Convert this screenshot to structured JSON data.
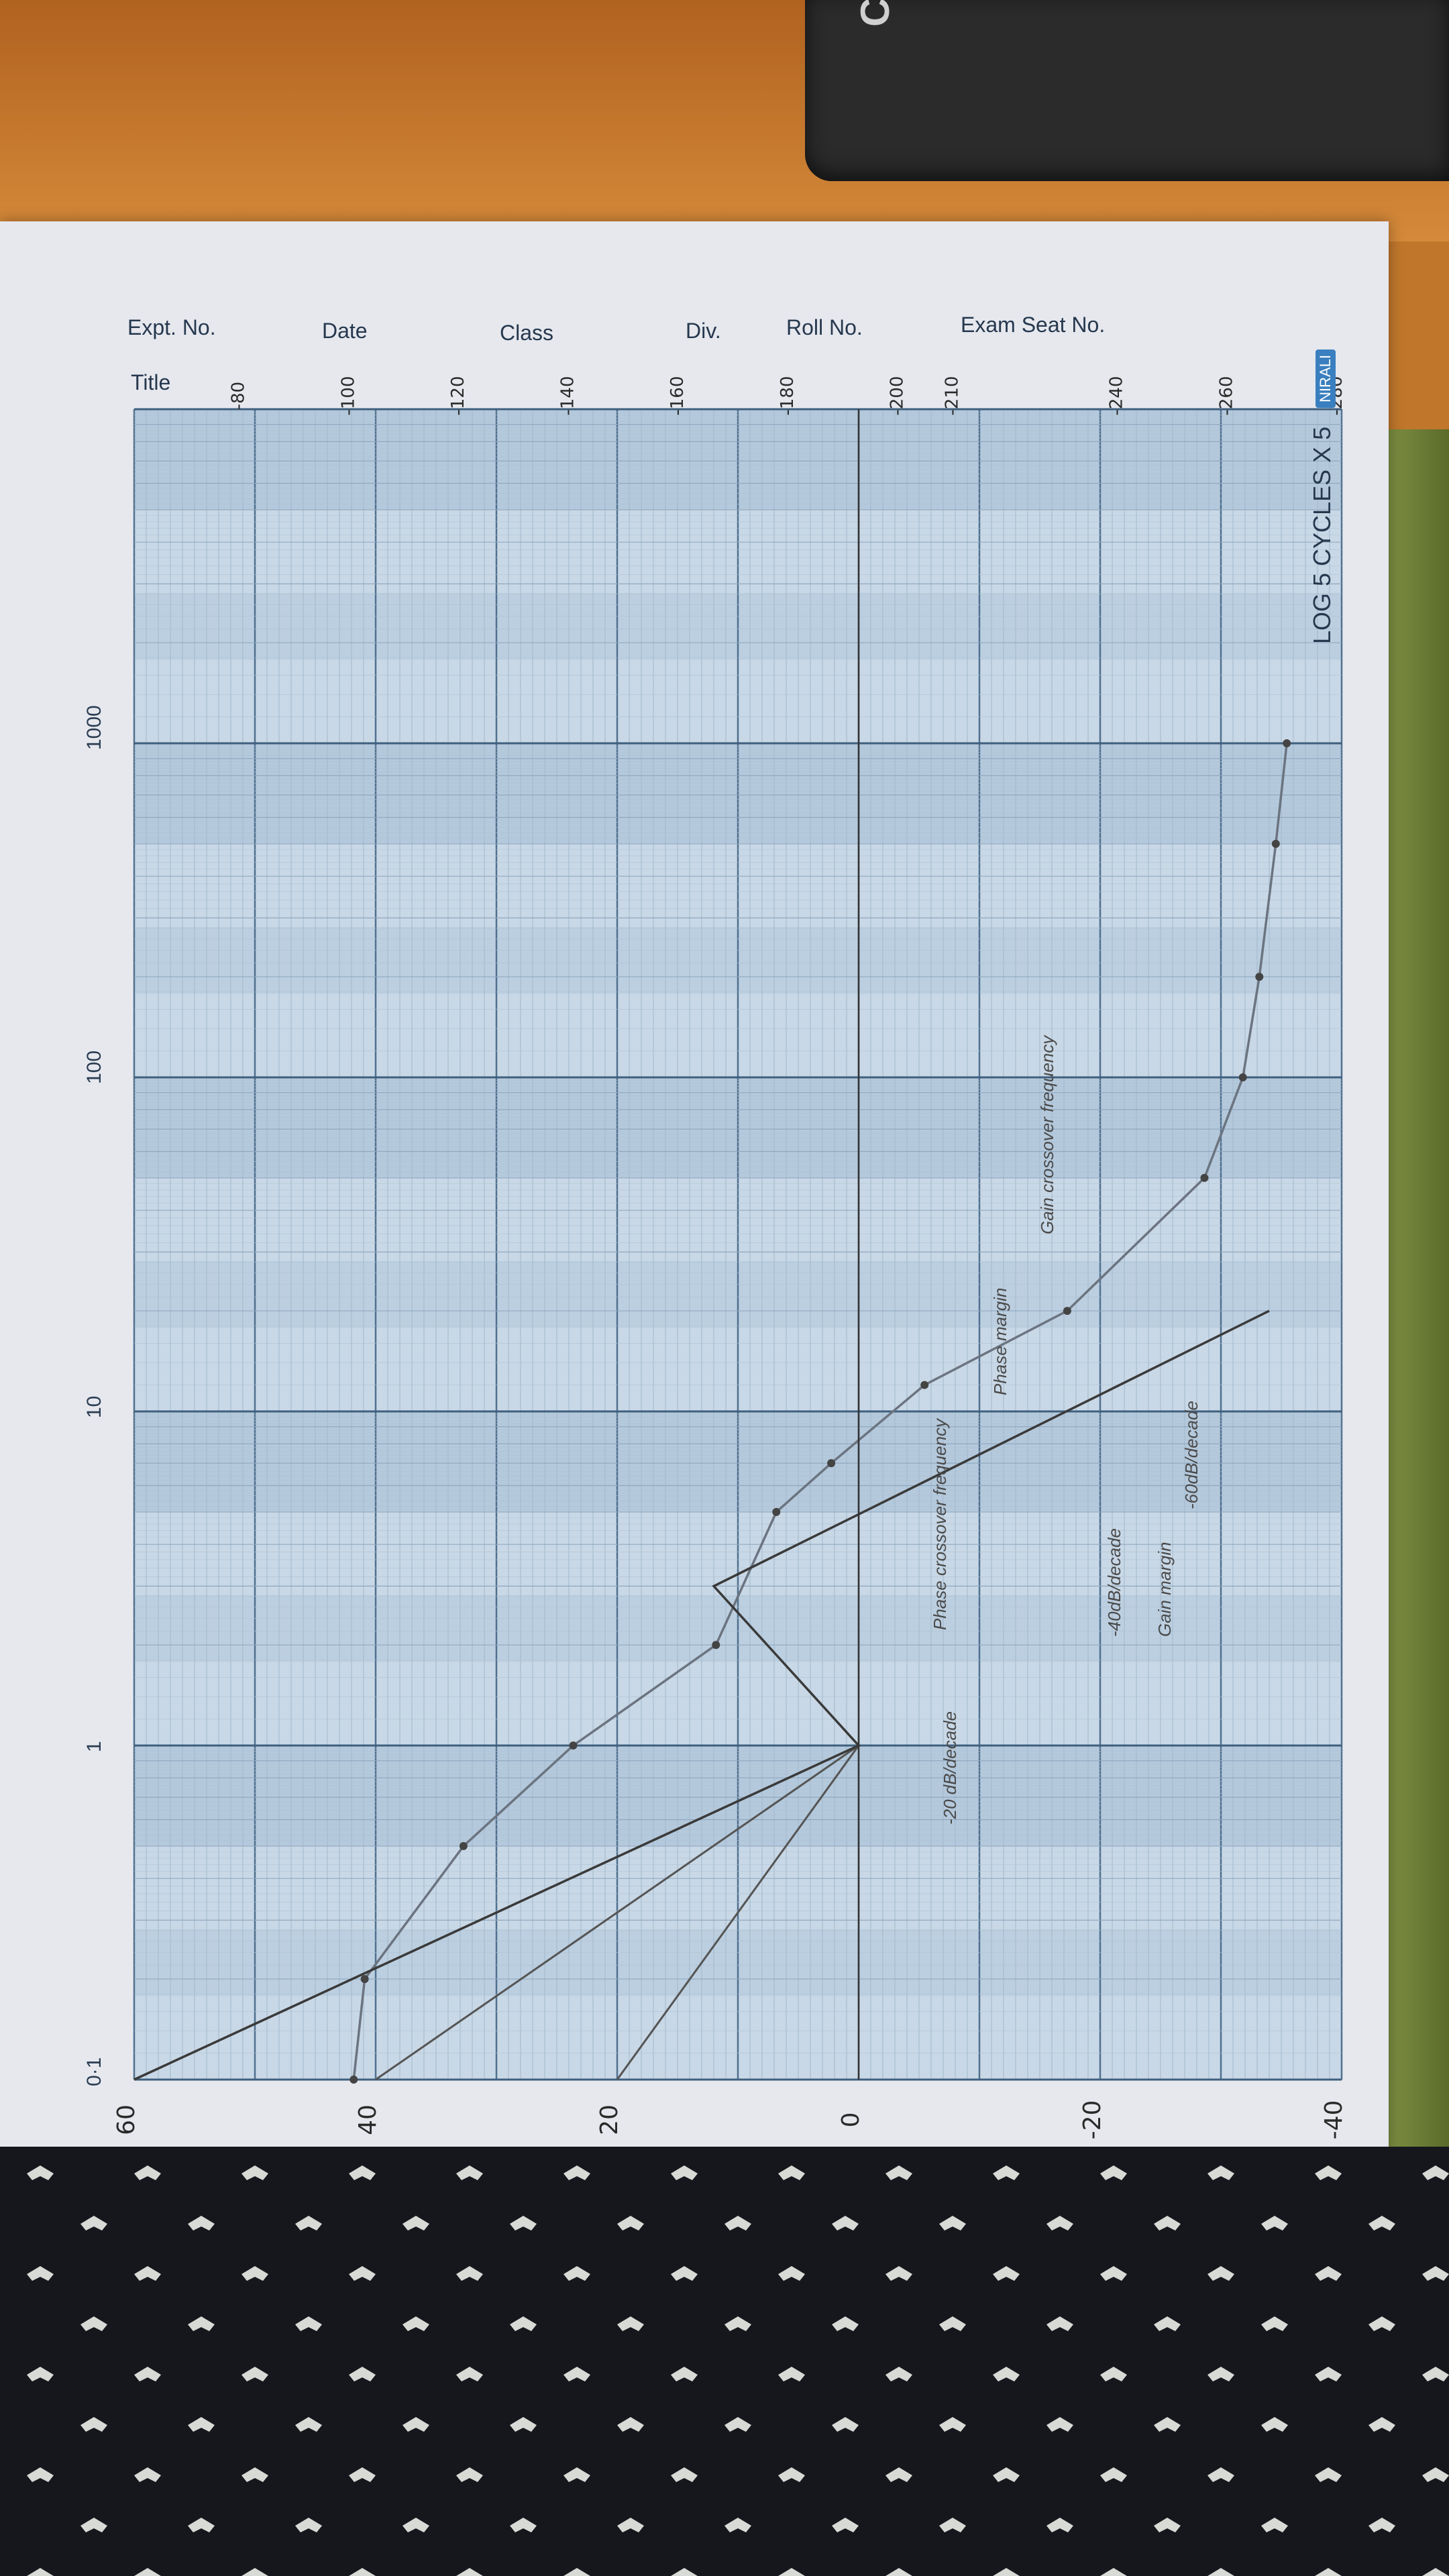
{
  "sheet": {
    "header_fields": [
      "Expt. No.",
      "Date",
      "Class",
      "Div.",
      "Roll No.",
      "Exam Seat No.",
      "Title"
    ],
    "brand_text": "LOG 5 CYCLES X 5",
    "brand_logo": "NIRALI",
    "calculator_brand": "CAS"
  },
  "chart_data": {
    "type": "line",
    "title": "",
    "xscale": "log",
    "xlim": [
      0.1,
      10000
    ],
    "decade_labels": [
      "0·1",
      "1",
      "10",
      "100",
      "1000"
    ],
    "magnitude_axis": {
      "ticks": [
        "60",
        "40",
        "20",
        "0",
        "-20",
        "-40"
      ],
      "ylim": [
        -40,
        60
      ]
    },
    "phase_axis": {
      "ticks": [
        "-80",
        "-100",
        "-120",
        "-140",
        "-160",
        "-180",
        "-200",
        "-210",
        "-240",
        "-260",
        "-280"
      ],
      "ylim": [
        -280,
        -60
      ]
    },
    "series": [
      {
        "axis": "phase",
        "x": [
          0.1,
          0.2,
          0.5,
          1.0,
          2.0,
          5.0,
          7.0,
          12.0,
          20.0,
          50.0,
          100.0,
          200.0,
          500.0,
          1000.0
        ],
        "values": [
          -100,
          -102,
          -120,
          -140,
          -166,
          -177,
          -187,
          -204,
          -230,
          -255,
          -262,
          -265,
          -268,
          -270
        ]
      },
      {
        "axis": "magnitude",
        "x": [
          0.1,
          1.0,
          3.0,
          20.0
        ],
        "values": [
          60,
          0,
          12,
          -34
        ]
      }
    ],
    "marker_lines": [
      {
        "axis": "magnitude",
        "x": [
          0.1,
          1.0
        ],
        "values": [
          60,
          0
        ]
      },
      {
        "axis": "magnitude",
        "x": [
          0.1,
          1.0
        ],
        "values": [
          40,
          0
        ]
      },
      {
        "axis": "magnitude",
        "x": [
          0.1,
          1.0
        ],
        "values": [
          20,
          0
        ]
      }
    ],
    "annotations": [
      "-20 dB/decade",
      "Phase crossover frequency",
      "Phase margin",
      "Gain crossover frequency",
      "-40dB/decade",
      "Gain margin",
      "-60dB/decade"
    ],
    "grid": true,
    "legend": "none"
  }
}
